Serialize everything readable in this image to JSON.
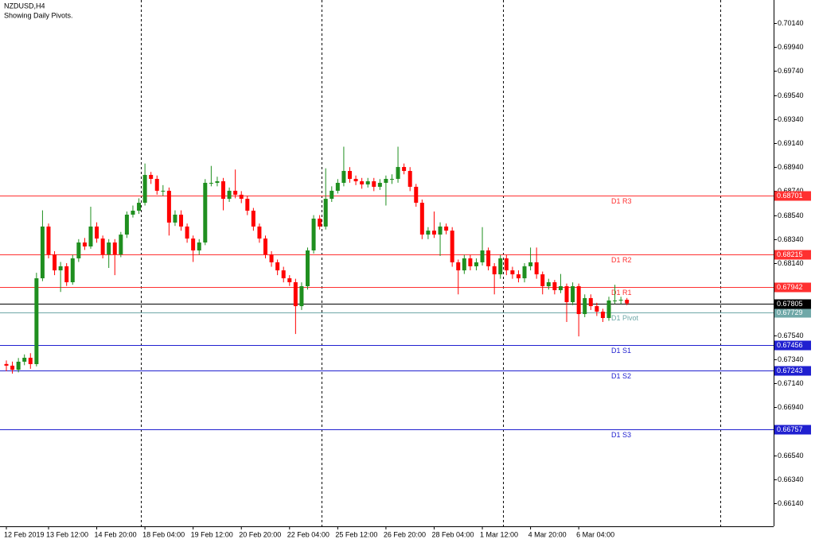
{
  "chart_data": {
    "type": "candlestick",
    "title": "NZDUSD,H4",
    "subtitle": "Showing Daily Pivots.",
    "categories": [
      "12 Feb 2019",
      null,
      null,
      null,
      null,
      null,
      null,
      "13 Feb 12:00",
      null,
      null,
      null,
      null,
      null,
      null,
      null,
      "14 Feb 20:00",
      null,
      null,
      null,
      null,
      null,
      null,
      null,
      "18 Feb 04:00",
      null,
      null,
      null,
      null,
      null,
      null,
      null,
      "19 Feb 12:00",
      null,
      null,
      null,
      null,
      null,
      null,
      null,
      "20 Feb 20:00",
      null,
      null,
      null,
      null,
      null,
      null,
      null,
      "22 Feb 04:00",
      null,
      null,
      null,
      null,
      null,
      null,
      null,
      "25 Feb 12:00",
      null,
      null,
      null,
      null,
      null,
      null,
      null,
      "26 Feb 20:00",
      null,
      null,
      null,
      null,
      null,
      null,
      null,
      "28 Feb 04:00",
      null,
      null,
      null,
      null,
      null,
      null,
      null,
      "1 Mar 12:00",
      null,
      null,
      null,
      null,
      null,
      null,
      null,
      "4 Mar 20:00",
      null,
      null,
      null,
      null,
      null,
      null,
      null,
      "6 Mar 04:00",
      null,
      null,
      null,
      null,
      null,
      null,
      null,
      null
    ],
    "open": [
      0.673,
      0.67286,
      0.67252,
      0.67319,
      0.67352,
      0.67299,
      0.68014,
      0.68445,
      0.68213,
      0.6808,
      0.68114,
      0.67981,
      0.6818,
      0.68312,
      0.68279,
      0.68445,
      0.68345,
      0.68213,
      0.68312,
      0.68213,
      0.68378,
      0.68544,
      0.68577,
      0.68643,
      0.68875,
      0.68842,
      0.68743,
      0.68743,
      0.68478,
      0.68544,
      0.68445,
      0.68345,
      0.68246,
      0.68312,
      0.68809,
      0.68809,
      0.68822,
      0.68676,
      0.68743,
      0.6871,
      0.68676,
      0.68577,
      0.68445,
      0.68345,
      0.68213,
      0.68147,
      0.6808,
      0.68014,
      0.67981,
      0.67782,
      0.67948,
      0.68246,
      0.68511,
      0.68445,
      0.68676,
      0.68743,
      0.68809,
      0.68908,
      0.68842,
      0.68822,
      0.68796,
      0.68822,
      0.68776,
      0.68809,
      0.68842,
      0.68842,
      0.68941,
      0.68908,
      0.68776,
      0.68643,
      0.68378,
      0.68411,
      0.68378,
      0.68445,
      0.68411,
      0.68147,
      0.6808,
      0.6818,
      0.68114,
      0.68147,
      0.68246,
      0.68114,
      0.68047,
      0.6818,
      0.6808,
      0.68047,
      0.68014,
      0.68114,
      0.68147,
      0.68047,
      0.67948,
      0.67981,
      0.67915,
      0.67948,
      0.67815,
      0.67948,
      0.67716,
      0.67849,
      0.67782,
      0.67736,
      0.67683,
      0.67829,
      0.67829,
      0.67835
    ],
    "high": [
      0.6733,
      0.6732,
      0.6735,
      0.6738,
      0.6739,
      0.6806,
      0.6858,
      0.6847,
      0.6824,
      0.6815,
      0.6814,
      0.6821,
      0.6834,
      0.6835,
      0.6861,
      0.6848,
      0.6837,
      0.6834,
      0.6834,
      0.684,
      0.6857,
      0.6862,
      0.6868,
      0.6897,
      0.689,
      0.6887,
      0.6879,
      0.6877,
      0.6858,
      0.6858,
      0.6847,
      0.6837,
      0.6834,
      0.6884,
      0.6895,
      0.6886,
      0.6885,
      0.6877,
      0.6892,
      0.6874,
      0.687,
      0.686,
      0.6847,
      0.6837,
      0.6824,
      0.6817,
      0.6811,
      0.6804,
      0.6801,
      0.6798,
      0.6827,
      0.6854,
      0.6854,
      0.6893,
      0.6878,
      0.6884,
      0.6911,
      0.6894,
      0.6887,
      0.6885,
      0.6885,
      0.6885,
      0.6884,
      0.6887,
      0.6888,
      0.6911,
      0.6897,
      0.6894,
      0.688,
      0.6867,
      0.6844,
      0.6857,
      0.6848,
      0.6847,
      0.6844,
      0.6817,
      0.6821,
      0.6821,
      0.6818,
      0.6844,
      0.6827,
      0.6814,
      0.6821,
      0.6821,
      0.6811,
      0.6808,
      0.6814,
      0.6827,
      0.6827,
      0.6807,
      0.6801,
      0.68,
      0.6805,
      0.6797,
      0.6798,
      0.6797,
      0.6788,
      0.6788,
      0.6781,
      0.6776,
      0.6786,
      0.6796,
      0.6786,
      0.6785
    ],
    "low": [
      0.6724,
      0.6722,
      0.6723,
      0.6729,
      0.6726,
      0.6728,
      0.6799,
      0.6818,
      0.6804,
      0.679,
      0.6795,
      0.6796,
      0.6815,
      0.6825,
      0.6826,
      0.6831,
      0.6818,
      0.681,
      0.6804,
      0.6819,
      0.6835,
      0.6852,
      0.6855,
      0.6862,
      0.688,
      0.6871,
      0.687,
      0.6837,
      0.6845,
      0.6841,
      0.6831,
      0.6815,
      0.6821,
      0.6829,
      0.6878,
      0.6878,
      0.6858,
      0.6865,
      0.6868,
      0.6864,
      0.6854,
      0.6841,
      0.6831,
      0.6818,
      0.6811,
      0.6804,
      0.6798,
      0.6795,
      0.6755,
      0.6775,
      0.6792,
      0.6822,
      0.6842,
      0.6842,
      0.6865,
      0.6872,
      0.6878,
      0.6881,
      0.6879,
      0.6876,
      0.6877,
      0.6874,
      0.6875,
      0.6862,
      0.688,
      0.6881,
      0.6888,
      0.6874,
      0.6861,
      0.6834,
      0.6834,
      0.6835,
      0.682,
      0.6838,
      0.6811,
      0.6788,
      0.6805,
      0.6808,
      0.6808,
      0.6812,
      0.6808,
      0.6788,
      0.6801,
      0.6804,
      0.6801,
      0.6798,
      0.6798,
      0.6808,
      0.6801,
      0.6788,
      0.6792,
      0.6788,
      0.6789,
      0.6765,
      0.6779,
      0.6753,
      0.6769,
      0.6775,
      0.677,
      0.6765,
      0.6766,
      0.678,
      0.678,
      0.6779
    ],
    "close": [
      0.67286,
      0.67252,
      0.67319,
      0.67352,
      0.67299,
      0.68014,
      0.68445,
      0.68213,
      0.6808,
      0.68114,
      0.67981,
      0.6818,
      0.68312,
      0.68279,
      0.68445,
      0.68345,
      0.68213,
      0.68312,
      0.68213,
      0.68378,
      0.68544,
      0.68577,
      0.68643,
      0.68875,
      0.68842,
      0.68743,
      0.68743,
      0.68478,
      0.68544,
      0.68445,
      0.68345,
      0.68246,
      0.68312,
      0.68809,
      0.68809,
      0.68822,
      0.68676,
      0.68743,
      0.6871,
      0.68676,
      0.68577,
      0.68445,
      0.68345,
      0.68213,
      0.68147,
      0.6808,
      0.68014,
      0.67981,
      0.67782,
      0.67948,
      0.68246,
      0.68511,
      0.68445,
      0.68676,
      0.68743,
      0.68809,
      0.68908,
      0.68842,
      0.68822,
      0.68796,
      0.68822,
      0.68776,
      0.68809,
      0.68842,
      0.68842,
      0.68941,
      0.68908,
      0.68776,
      0.68643,
      0.68378,
      0.68411,
      0.68378,
      0.68445,
      0.68411,
      0.68147,
      0.6808,
      0.6818,
      0.68114,
      0.68147,
      0.68246,
      0.68114,
      0.68047,
      0.6818,
      0.6808,
      0.68047,
      0.68014,
      0.68114,
      0.68147,
      0.68047,
      0.67948,
      0.67981,
      0.67915,
      0.67948,
      0.67815,
      0.67948,
      0.67716,
      0.67849,
      0.67782,
      0.67736,
      0.67683,
      0.67829,
      0.67829,
      0.67835,
      0.67805
    ],
    "up_color": "#1f8f1f",
    "down_color": "#ff0000",
    "ylim": [
      0.65948,
      0.70332
    ],
    "yticks": [
      {
        "value": 0.7014,
        "label": "0.70140"
      },
      {
        "value": 0.6994,
        "label": "0.69940"
      },
      {
        "value": 0.6974,
        "label": "0.69740"
      },
      {
        "value": 0.6954,
        "label": "0.69540"
      },
      {
        "value": 0.6934,
        "label": "0.69340"
      },
      {
        "value": 0.6914,
        "label": "0.69140"
      },
      {
        "value": 0.6894,
        "label": "0.68940"
      },
      {
        "value": 0.6874,
        "label": "0.68740"
      },
      {
        "value": 0.6854,
        "label": "0.68540"
      },
      {
        "value": 0.6834,
        "label": "0.68340"
      },
      {
        "value": 0.6814,
        "label": "0.68140"
      },
      {
        "value": 0.6794,
        "label": "0.67940"
      },
      {
        "value": 0.6774,
        "label": "0.67740"
      },
      {
        "value": 0.6754,
        "label": "0.67540"
      },
      {
        "value": 0.6734,
        "label": "0.67340"
      },
      {
        "value": 0.6714,
        "label": "0.67140"
      },
      {
        "value": 0.6694,
        "label": "0.66940"
      },
      {
        "value": 0.6674,
        "label": "0.66740"
      },
      {
        "value": 0.6654,
        "label": "0.66540"
      },
      {
        "value": 0.6634,
        "label": "0.66340"
      },
      {
        "value": 0.6614,
        "label": "0.66140"
      }
    ],
    "pivots": [
      {
        "name": "D1 R3",
        "value": 0.68701,
        "color": "#ff3030"
      },
      {
        "name": "D1 R2",
        "value": 0.68215,
        "color": "#ff3030"
      },
      {
        "name": "D1 R1",
        "value": 0.67942,
        "color": "#ff3030"
      },
      {
        "name": "D1 Pivot",
        "value": 0.67729,
        "color": "#6fa8a8"
      },
      {
        "name": "D1 S1",
        "value": 0.67456,
        "color": "#2020d0"
      },
      {
        "name": "D1 S2",
        "value": 0.67243,
        "color": "#2020d0"
      },
      {
        "name": "D1 S3",
        "value": 0.66757,
        "color": "#2020d0"
      }
    ],
    "current_price": {
      "value": 0.67805,
      "color": "#000000"
    }
  }
}
